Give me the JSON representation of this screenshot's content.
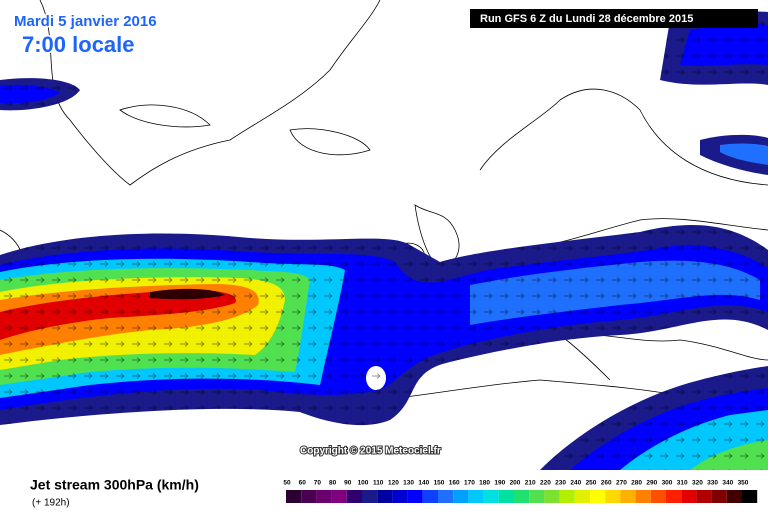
{
  "header": {
    "date": "Mardi 5 janvier 2016",
    "time": "7:00 locale",
    "run": "Run GFS 6 Z du Lundi 28 décembre 2015"
  },
  "copyright": "Copyright © 2015 Meteociel.fr",
  "footer": {
    "title": "Jet stream 300hPa (km/h)",
    "lead": "(+ 192h)"
  },
  "legend": {
    "labels": [
      50,
      60,
      70,
      80,
      90,
      100,
      110,
      120,
      130,
      140,
      150,
      160,
      170,
      180,
      190,
      200,
      210,
      220,
      230,
      240,
      250,
      260,
      270,
      280,
      290,
      300,
      310,
      320,
      330,
      340,
      350
    ],
    "colors": [
      "#2c0030",
      "#4a0050",
      "#6a0070",
      "#800080",
      "#300070",
      "#1a1a8a",
      "#0000a0",
      "#0000d0",
      "#0000ff",
      "#1040ff",
      "#2070ff",
      "#00a0ff",
      "#00c8ff",
      "#00e0e0",
      "#00e0a0",
      "#20e070",
      "#50e050",
      "#80e030",
      "#b0f000",
      "#e0f000",
      "#ffff00",
      "#ffd800",
      "#ffb000",
      "#ff8000",
      "#ff5000",
      "#ff2000",
      "#e00000",
      "#b00000",
      "#800000",
      "#400000",
      "#000000"
    ]
  }
}
